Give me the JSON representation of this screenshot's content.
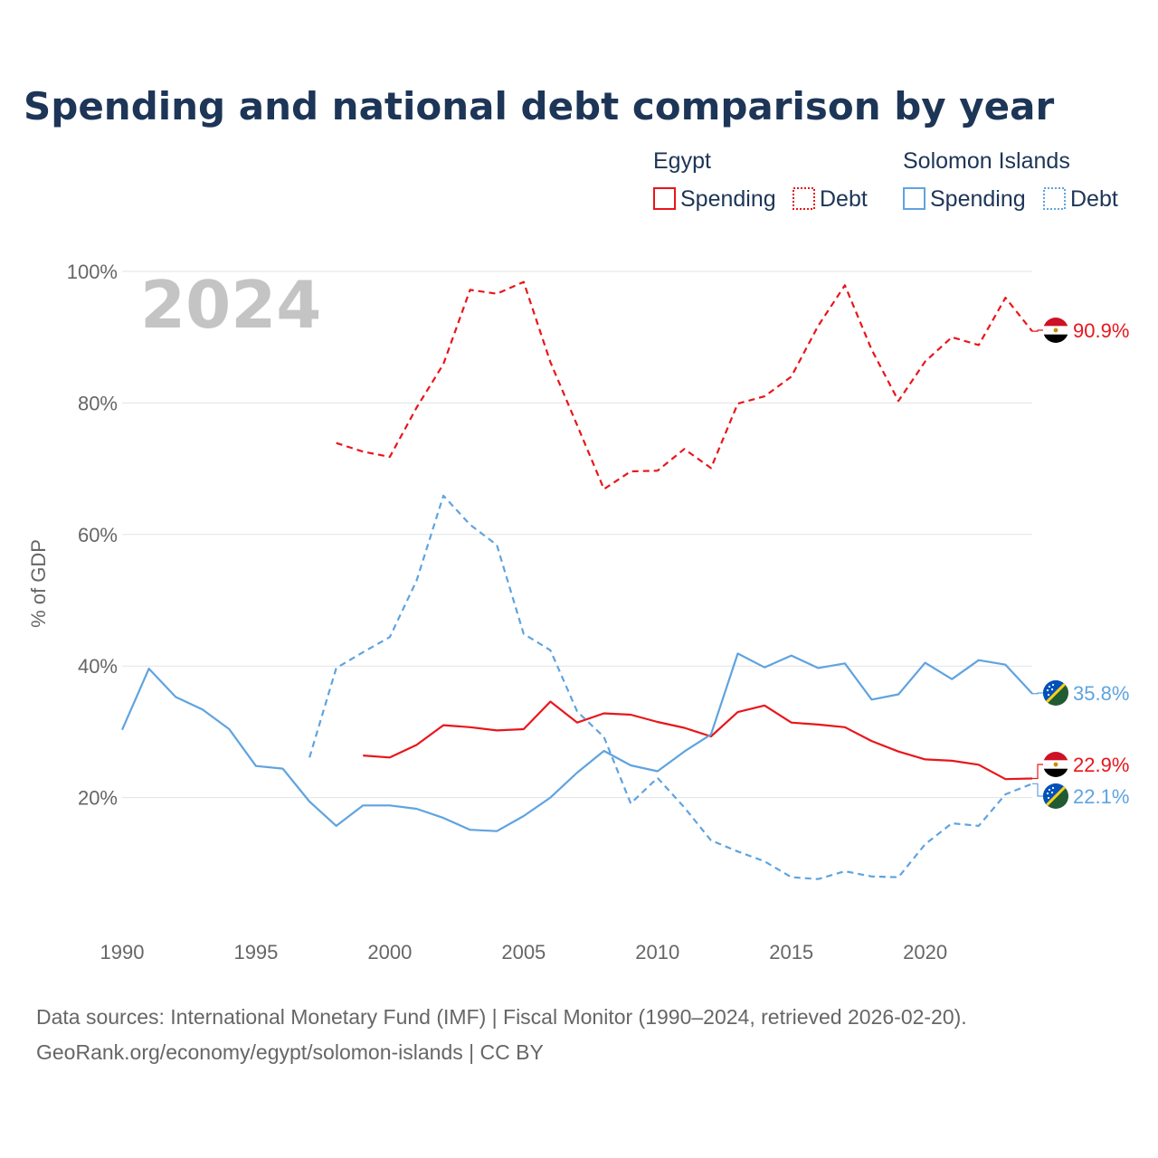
{
  "title": "Spending and national debt comparison by year",
  "year_watermark": "2024",
  "footer": {
    "line1": "Data sources: International Monetary Fund (IMF) | Fiscal Monitor (1990–2024, retrieved 2026-02-20).",
    "line2": "GeoRank.org/economy/egypt/solomon-islands | CC BY"
  },
  "colors": {
    "egypt": "#e8161b",
    "solomon": "#5fa3e0",
    "title": "#1d3557",
    "muted": "#666666"
  },
  "legend": {
    "groups": [
      {
        "name": "Egypt",
        "items": [
          "Spending",
          "Debt"
        ]
      },
      {
        "name": "Solomon Islands",
        "items": [
          "Spending",
          "Debt"
        ]
      }
    ]
  },
  "chart_data": {
    "type": "line",
    "title": "Spending and national debt comparison by year",
    "xlabel": "",
    "ylabel": "% of GDP",
    "xlim": [
      1990,
      2024
    ],
    "ylim": [
      0,
      100
    ],
    "x_ticks": [
      1990,
      1995,
      2000,
      2005,
      2010,
      2015,
      2020
    ],
    "x_tick_labels": [
      "1990",
      "1995",
      "2000",
      "2005",
      "2010",
      "2015",
      "2020"
    ],
    "y_ticks": [
      20,
      40,
      60,
      80,
      100
    ],
    "y_tick_labels": [
      "20%",
      "40%",
      "60%",
      "80%",
      "100%"
    ],
    "grid": true,
    "series": [
      {
        "name": "Egypt Debt",
        "country": "Egypt",
        "metric": "Debt",
        "dashed": true,
        "end_label": "90.9%",
        "x": [
          1998,
          1999,
          2000,
          2001,
          2002,
          2003,
          2004,
          2005,
          2006,
          2007,
          2008,
          2009,
          2010,
          2011,
          2012,
          2013,
          2014,
          2015,
          2016,
          2017,
          2018,
          2019,
          2020,
          2021,
          2022,
          2023,
          2024
        ],
        "values": [
          73.9,
          72.6,
          71.8,
          79.3,
          85.9,
          97.2,
          96.6,
          98.4,
          86.2,
          76.6,
          66.9,
          69.6,
          69.7,
          73.0,
          70.1,
          79.9,
          81.0,
          84.0,
          91.7,
          97.9,
          88.1,
          80.3,
          86.3,
          90.0,
          88.8,
          96.0,
          90.9
        ]
      },
      {
        "name": "Egypt Spending",
        "country": "Egypt",
        "metric": "Spending",
        "dashed": false,
        "end_label": "22.9%",
        "x": [
          1999,
          2000,
          2001,
          2002,
          2003,
          2004,
          2005,
          2006,
          2007,
          2008,
          2009,
          2010,
          2011,
          2012,
          2013,
          2014,
          2015,
          2016,
          2017,
          2018,
          2019,
          2020,
          2021,
          2022,
          2023,
          2024
        ],
        "values": [
          26.4,
          26.1,
          28.0,
          31.0,
          30.7,
          30.2,
          30.4,
          34.6,
          31.4,
          32.8,
          32.6,
          31.5,
          30.6,
          29.3,
          33.0,
          34.0,
          31.4,
          31.1,
          30.7,
          28.6,
          27.0,
          25.8,
          25.6,
          25.0,
          22.8,
          22.9
        ]
      },
      {
        "name": "Solomon Islands Debt",
        "country": "Solomon Islands",
        "metric": "Debt",
        "dashed": true,
        "end_label": "22.1%",
        "x": [
          1997,
          1998,
          1999,
          2000,
          2001,
          2002,
          2003,
          2004,
          2005,
          2006,
          2007,
          2008,
          2009,
          2010,
          2011,
          2012,
          2013,
          2014,
          2015,
          2016,
          2017,
          2018,
          2019,
          2020,
          2021,
          2022,
          2023,
          2024
        ],
        "values": [
          26.1,
          39.7,
          42.1,
          44.4,
          53.0,
          65.9,
          61.5,
          58.4,
          44.9,
          42.4,
          33.1,
          29.2,
          19.1,
          23.0,
          18.5,
          13.5,
          11.8,
          10.3,
          7.9,
          7.6,
          8.8,
          8.0,
          7.9,
          12.9,
          16.1,
          15.7,
          20.5,
          22.1
        ]
      },
      {
        "name": "Solomon Islands Spending",
        "country": "Solomon Islands",
        "metric": "Spending",
        "dashed": false,
        "end_label": "35.8%",
        "x": [
          1990,
          1991,
          1992,
          1993,
          1994,
          1995,
          1996,
          1997,
          1998,
          1999,
          2000,
          2001,
          2002,
          2003,
          2004,
          2005,
          2006,
          2007,
          2008,
          2009,
          2010,
          2011,
          2012,
          2013,
          2014,
          2015,
          2016,
          2017,
          2018,
          2019,
          2020,
          2021,
          2022,
          2023,
          2024
        ],
        "values": [
          30.3,
          39.6,
          35.3,
          33.4,
          30.4,
          24.8,
          24.4,
          19.4,
          15.7,
          18.8,
          18.8,
          18.3,
          16.9,
          15.1,
          14.9,
          17.2,
          20.0,
          23.8,
          27.1,
          24.9,
          24.0,
          27.0,
          29.6,
          41.9,
          39.8,
          41.6,
          39.7,
          40.4,
          34.9,
          35.7,
          40.5,
          38.0,
          40.9,
          40.2,
          35.8
        ]
      }
    ]
  }
}
